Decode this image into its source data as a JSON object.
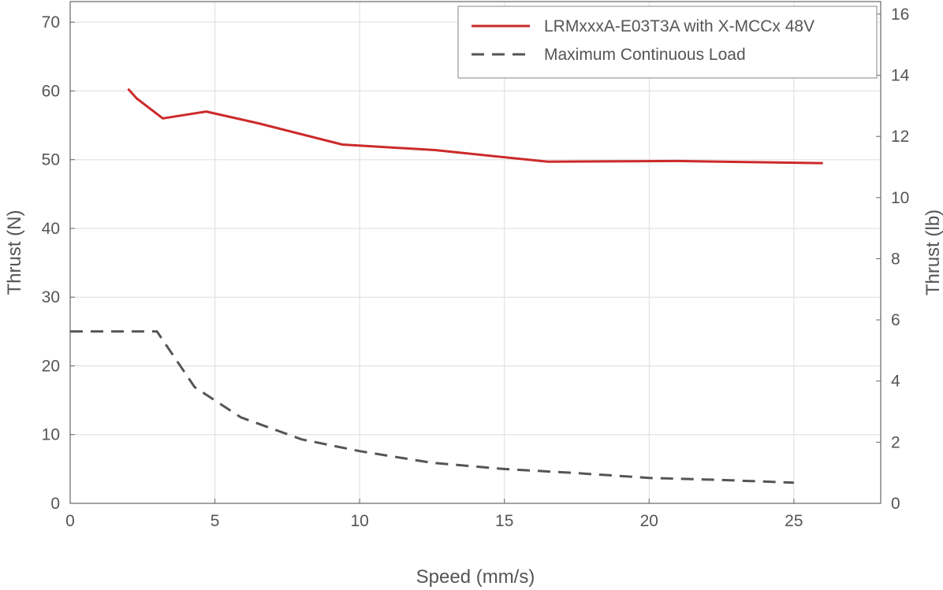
{
  "chart_data": {
    "type": "line",
    "xlabel": "Speed (mm/s)",
    "ylabel": "Thrust (N)",
    "y2label": "Thrust (lb)",
    "xlim": [
      0,
      28
    ],
    "ylim": [
      0,
      73
    ],
    "y2lim": [
      0,
      16.41
    ],
    "xticks": [
      "0",
      "5",
      "10",
      "15",
      "20",
      "25"
    ],
    "yticks": [
      "0",
      "10",
      "20",
      "30",
      "40",
      "50",
      "60",
      "70"
    ],
    "y2ticks": [
      "0",
      "2",
      "4",
      "6",
      "8",
      "10",
      "12",
      "14",
      "16"
    ],
    "grid": true,
    "legend_position": "top-right",
    "series": [
      {
        "name": "LRMxxxA-E03T3A with X-MCCx 48V",
        "color": "#cc2a2a",
        "style": "solid",
        "x": [
          2.0,
          2.3,
          3.2,
          4.7,
          6.5,
          9.4,
          12.6,
          16.5,
          21.0,
          26.0
        ],
        "y": [
          60.3,
          58.9,
          56.0,
          57.0,
          55.3,
          52.2,
          51.4,
          49.7,
          49.8,
          49.5
        ]
      },
      {
        "name": "Maximum Continuous Load",
        "color": "#555555",
        "style": "dashed",
        "x": [
          0,
          3.0,
          4.3,
          5.9,
          8.0,
          10.0,
          12.5,
          15.0,
          17.5,
          20.0,
          22.5,
          25.0
        ],
        "y": [
          25.0,
          25.0,
          16.9,
          12.5,
          9.3,
          7.6,
          5.9,
          5.0,
          4.4,
          3.7,
          3.4,
          3.0
        ]
      }
    ]
  }
}
